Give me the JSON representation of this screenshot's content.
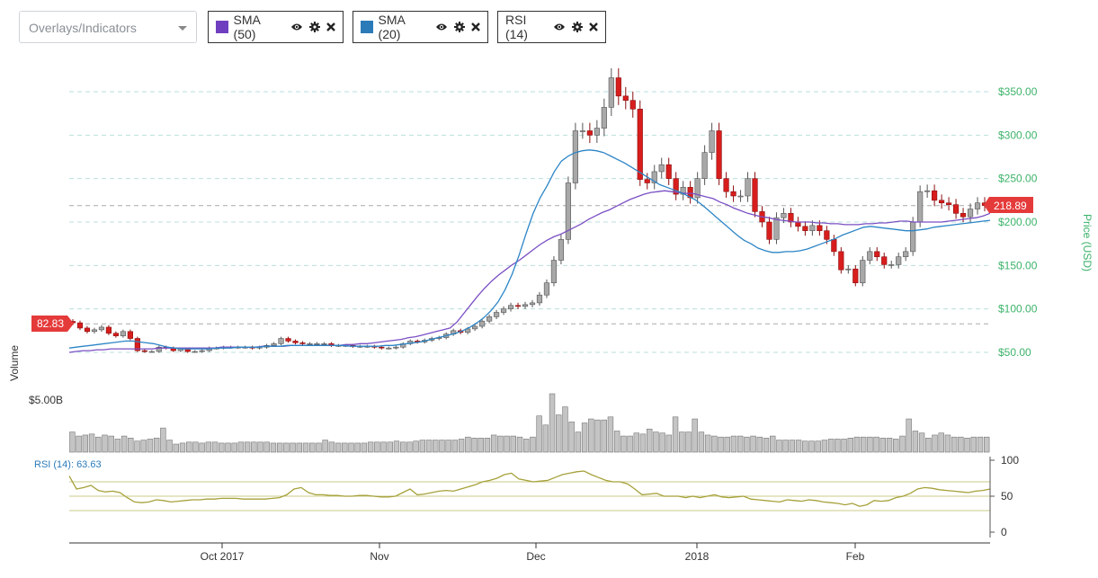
{
  "toolbar": {
    "select_placeholder": "Overlays/Indicators",
    "chips": [
      {
        "label": "SMA (50)",
        "color": "#6f3fbf"
      },
      {
        "label": "SMA (20)",
        "color": "#2b7bb9"
      },
      {
        "label": "RSI (14)",
        "color": null
      }
    ]
  },
  "chart_data": {
    "type": "candlestick",
    "price": {
      "axis_label": "Price (USD)",
      "ticks": [
        50,
        100,
        150,
        200,
        250,
        300,
        350
      ],
      "tick_labels": [
        "$50.00",
        "$100.00",
        "$150.00",
        "$200.00",
        "$250.00",
        "$300.00",
        "$350.00"
      ],
      "ylim": [
        42,
        378
      ],
      "current_price_label": "218.89",
      "current_price": 218.89,
      "start_price_label": "82.83",
      "start_price": 82.83,
      "close": [
        84,
        78,
        74,
        76,
        79,
        72,
        69,
        74,
        66,
        52,
        51,
        51,
        56,
        55,
        52,
        54,
        51,
        51,
        52,
        55,
        55,
        56,
        56,
        56,
        56,
        55,
        56,
        58,
        60,
        66,
        63,
        61,
        60,
        60,
        60,
        60,
        58,
        58,
        58,
        57,
        57,
        57,
        56,
        55,
        55,
        56,
        60,
        63,
        62,
        64,
        66,
        67,
        71,
        75,
        73,
        77,
        80,
        86,
        91,
        96,
        100,
        104,
        103,
        105,
        107,
        116,
        130,
        156,
        180,
        245,
        305,
        305,
        300,
        308,
        332,
        366,
        345,
        340,
        330,
        249,
        245,
        258,
        266,
        250,
        232,
        240,
        228,
        250,
        280,
        305,
        250,
        235,
        230,
        230,
        250,
        212,
        200,
        180,
        205,
        210,
        200,
        195,
        190,
        196,
        190,
        180,
        166,
        145,
        146,
        130,
        156,
        166,
        160,
        151,
        151,
        160,
        166,
        200,
        235,
        236,
        225,
        222,
        220,
        210,
        206,
        215,
        222,
        219
      ],
      "sma50": [
        50,
        51,
        52,
        52,
        53,
        53,
        54,
        54,
        54,
        54,
        54,
        54,
        54,
        55,
        55,
        55,
        55,
        55,
        55,
        55,
        55,
        55,
        56,
        56,
        56,
        56,
        56,
        56,
        57,
        57,
        57,
        57,
        58,
        58,
        58,
        58,
        58,
        58,
        58,
        58,
        59,
        59,
        60,
        60,
        61,
        62,
        63,
        64,
        65,
        67,
        68,
        70,
        72,
        74,
        76,
        78,
        85,
        95,
        105,
        115,
        124,
        132,
        139,
        145,
        151,
        156,
        162,
        168,
        174,
        179,
        183,
        186,
        190,
        194,
        198,
        203,
        207,
        211,
        214,
        218,
        222,
        226,
        229,
        232,
        234,
        235,
        236,
        235,
        234,
        233,
        233,
        231,
        229,
        227,
        223,
        220,
        216,
        213,
        210,
        208,
        206,
        205,
        203,
        202,
        201,
        200,
        200,
        200,
        199,
        199,
        198,
        198,
        197,
        197,
        197,
        198,
        198,
        199,
        199,
        200,
        201,
        201,
        200,
        200,
        200,
        200,
        200,
        201,
        202,
        203,
        204,
        205,
        207,
        210
      ],
      "sma20": [
        55,
        56,
        57,
        58,
        59,
        60,
        61,
        62,
        63,
        63,
        62,
        61,
        60,
        58,
        56,
        55,
        54,
        54,
        54,
        54,
        54,
        55,
        55,
        55,
        56,
        56,
        56,
        56,
        57,
        57,
        57,
        58,
        58,
        58,
        58,
        58,
        58,
        58,
        58,
        58,
        57,
        57,
        57,
        57,
        57,
        58,
        58,
        59,
        60,
        61,
        62,
        64,
        66,
        68,
        70,
        72,
        75,
        79,
        84,
        90,
        98,
        108,
        122,
        140,
        162,
        187,
        210,
        228,
        242,
        258,
        270,
        276,
        280,
        282,
        283,
        282,
        280,
        276,
        272,
        268,
        263,
        258,
        253,
        248,
        243,
        240,
        237,
        234,
        230,
        226,
        220,
        213,
        206,
        199,
        192,
        185,
        179,
        175,
        170,
        167,
        165,
        165,
        166,
        166,
        167,
        169,
        172,
        175,
        178,
        181,
        185,
        188,
        191,
        194,
        195,
        194,
        193,
        192,
        191,
        190,
        190,
        191,
        192,
        194,
        195,
        196,
        197,
        198,
        199,
        200,
        201,
        202
      ]
    },
    "volume": {
      "axis_label": "Volume",
      "tick_label": "$5.00B",
      "values": [
        2.0,
        1.6,
        1.7,
        1.8,
        1.5,
        1.7,
        1.6,
        1.3,
        1.6,
        1.4,
        1.1,
        1.2,
        1.3,
        1.4,
        2.4,
        1.2,
        0.8,
        0.9,
        1.0,
        1.0,
        0.9,
        1.0,
        1.0,
        0.9,
        0.9,
        0.9,
        1.0,
        1.0,
        1.0,
        1.0,
        1.0,
        0.9,
        0.9,
        0.9,
        0.9,
        0.9,
        0.9,
        0.9,
        0.9,
        1.2,
        1.0,
        0.9,
        0.9,
        0.9,
        0.9,
        0.9,
        1.0,
        1.0,
        1.0,
        1.0,
        1.1,
        1.0,
        1.0,
        1.1,
        1.2,
        1.2,
        1.2,
        1.2,
        1.2,
        1.2,
        1.3,
        1.5,
        1.4,
        1.4,
        1.4,
        1.7,
        1.6,
        1.6,
        1.6,
        1.5,
        1.3,
        1.5,
        3.6,
        2.7,
        5.8,
        3.7,
        4.5,
        3.0,
        2.0,
        2.9,
        3.3,
        3.2,
        3.2,
        3.5,
        2.1,
        1.6,
        1.6,
        1.9,
        1.8,
        2.3,
        2.0,
        1.9,
        1.7,
        3.5,
        2.0,
        2.0,
        3.3,
        2.0,
        1.7,
        1.6,
        1.5,
        1.5,
        1.6,
        1.6,
        1.5,
        1.6,
        1.5,
        1.4,
        1.6,
        1.2,
        1.2,
        1.2,
        1.2,
        1.1,
        1.1,
        1.1,
        1.2,
        1.3,
        1.3,
        1.3,
        1.4,
        1.5,
        1.5,
        1.5,
        1.5,
        1.4,
        1.4,
        1.3,
        1.6,
        3.3,
        2.1,
        1.9,
        1.4,
        1.7,
        1.9,
        1.7,
        1.5,
        1.5,
        1.4,
        1.5,
        1.5,
        1.5
      ]
    },
    "rsi": {
      "label": "RSI (14): 63.63",
      "ticks": [
        0,
        50,
        100
      ],
      "bands": [
        30,
        70
      ],
      "values": [
        78,
        60,
        62,
        65,
        58,
        56,
        57,
        55,
        48,
        42,
        41,
        42,
        45,
        44,
        42,
        43,
        44,
        45,
        45,
        46,
        46,
        47,
        47,
        47,
        46,
        46,
        46,
        46,
        47,
        48,
        52,
        60,
        62,
        55,
        52,
        52,
        51,
        51,
        50,
        50,
        51,
        51,
        50,
        49,
        49,
        50,
        55,
        60,
        52,
        53,
        55,
        57,
        58,
        57,
        60,
        63,
        66,
        70,
        72,
        75,
        80,
        82,
        74,
        72,
        70,
        71,
        72,
        76,
        80,
        82,
        84,
        85,
        80,
        76,
        72,
        70,
        70,
        67,
        60,
        52,
        53,
        54,
        50,
        50,
        50,
        48,
        50,
        48,
        50,
        52,
        49,
        48,
        49,
        50,
        46,
        45,
        44,
        43,
        42,
        45,
        44,
        43,
        45,
        44,
        42,
        41,
        40,
        38,
        40,
        36,
        38,
        44,
        43,
        44,
        48,
        50,
        54,
        60,
        62,
        61,
        59,
        58,
        57,
        56,
        55,
        57,
        58,
        60
      ]
    },
    "x_axis": {
      "tick_labels": [
        "Oct 2017",
        "Nov",
        "Dec",
        "2018",
        "Feb"
      ]
    },
    "colors": {
      "up": "#a8a8a8",
      "down": "#d81d1d",
      "sma50": "#7a4fc4",
      "sma20": "#2c85c6",
      "rsi": "#a6a13a",
      "price_axis": "#3cb36a",
      "grid": "#b9dfdc"
    }
  }
}
